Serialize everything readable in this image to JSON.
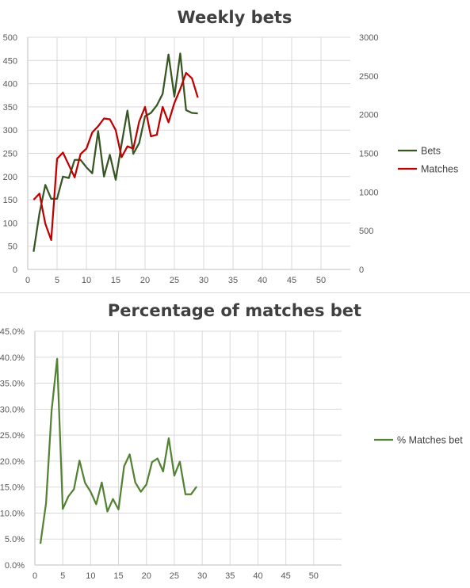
{
  "chart_data": [
    {
      "type": "line",
      "title": "Weekly bets",
      "x": [
        1,
        2,
        3,
        4,
        5,
        6,
        7,
        8,
        9,
        10,
        11,
        12,
        13,
        14,
        15,
        16,
        17,
        18,
        19,
        20,
        21,
        22,
        23,
        24,
        25,
        26,
        27,
        28,
        29
      ],
      "xlim": [
        0,
        55
      ],
      "xticks": [
        0,
        5,
        10,
        15,
        20,
        25,
        30,
        35,
        40,
        45,
        50
      ],
      "ylim_left": [
        0,
        500
      ],
      "yticks_left": [
        0,
        50,
        100,
        150,
        200,
        250,
        300,
        350,
        400,
        450,
        500
      ],
      "ylim_right": [
        0,
        3000
      ],
      "yticks_right": [
        0,
        500,
        1000,
        1500,
        2000,
        2500,
        3000
      ],
      "grid": true,
      "legend_position": "right",
      "series": [
        {
          "name": "Bets",
          "axis": "left",
          "color": "#375623",
          "values": [
            38,
            121,
            182,
            152,
            152,
            200,
            197,
            236,
            236,
            220,
            207,
            298,
            200,
            247,
            193,
            270,
            342,
            249,
            272,
            330,
            337,
            353,
            378,
            463,
            372,
            465,
            343,
            337,
            336
          ]
        },
        {
          "name": "Matches",
          "axis": "right",
          "color": "#c00000",
          "values": [
            900,
            980,
            590,
            380,
            1430,
            1510,
            1350,
            1190,
            1490,
            1560,
            1770,
            1850,
            1950,
            1940,
            1800,
            1450,
            1590,
            1560,
            1910,
            2100,
            1720,
            1740,
            2100,
            1900,
            2150,
            2330,
            2540,
            2470,
            2220
          ]
        }
      ]
    },
    {
      "type": "line",
      "title": "Percentage of matches bet",
      "x": [
        1,
        2,
        3,
        4,
        5,
        6,
        7,
        8,
        9,
        10,
        11,
        12,
        13,
        14,
        15,
        16,
        17,
        18,
        19,
        20,
        21,
        22,
        23,
        24,
        25,
        26,
        27,
        28,
        29
      ],
      "xlim": [
        0,
        55
      ],
      "xticks": [
        0,
        5,
        10,
        15,
        20,
        25,
        30,
        35,
        40,
        45,
        50
      ],
      "ylim": [
        0,
        0.45
      ],
      "yticks": [
        "0.0%",
        "5.0%",
        "10.0%",
        "15.0%",
        "20.0%",
        "25.0%",
        "30.0%",
        "35.0%",
        "40.0%",
        "45.0%"
      ],
      "grid": true,
      "legend_position": "right",
      "series": [
        {
          "name": "% Matches bet",
          "color": "#548235",
          "values": [
            0.041,
            0.119,
            0.297,
            0.397,
            0.108,
            0.132,
            0.146,
            0.201,
            0.158,
            0.141,
            0.117,
            0.159,
            0.103,
            0.127,
            0.107,
            0.19,
            0.213,
            0.159,
            0.141,
            0.155,
            0.198,
            0.205,
            0.18,
            0.244,
            0.172,
            0.199,
            0.136,
            0.136,
            0.151
          ]
        }
      ]
    }
  ]
}
